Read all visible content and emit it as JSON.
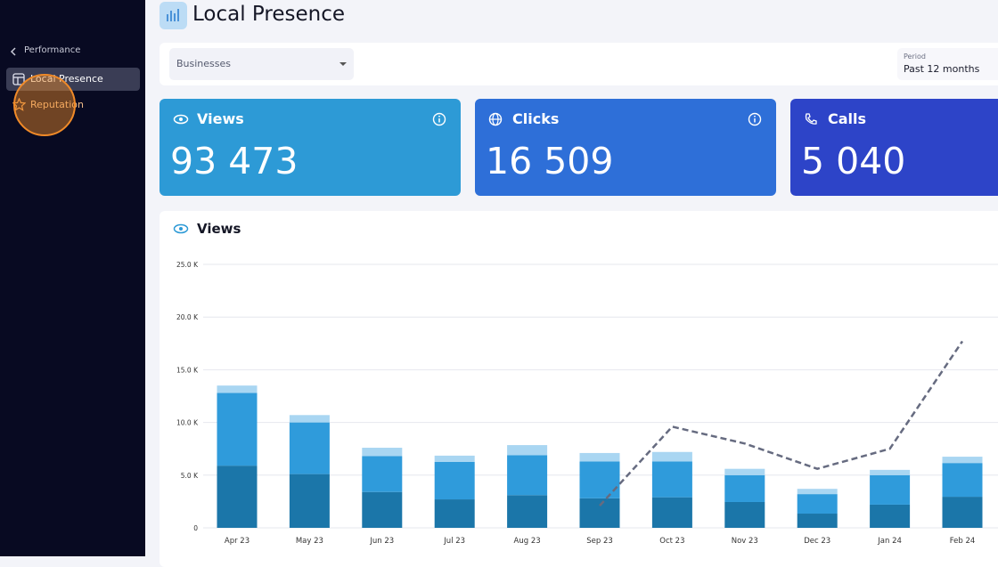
{
  "sidebar": {
    "back": "Performance",
    "items": [
      "Local Presence",
      "Reputation"
    ]
  },
  "header": {
    "title": "Local Presence"
  },
  "filters": {
    "businesses": "Businesses",
    "period_label": "Period",
    "period_value": "Past 12 months"
  },
  "kpis": [
    {
      "label": "Views",
      "value": "93 473"
    },
    {
      "label": "Clicks",
      "value": "16 509"
    },
    {
      "label": "Calls",
      "value": "5 040"
    }
  ],
  "chart_card": {
    "title": "Views"
  },
  "chart_data": {
    "type": "bar",
    "stacked": true,
    "categories": [
      "Apr 23",
      "May 23",
      "Jun 23",
      "Jul 23",
      "Aug 23",
      "Sep 23",
      "Oct 23",
      "Nov 23",
      "Dec 23",
      "Jan 24",
      "Feb 24"
    ],
    "series": [
      {
        "color": "#1b76a9",
        "values": [
          5900,
          5100,
          3400,
          2700,
          3100,
          2800,
          2900,
          2450,
          1350,
          2200,
          2950
        ]
      },
      {
        "color": "#2f9bdb",
        "values": [
          6900,
          4900,
          3400,
          3550,
          3800,
          3500,
          3400,
          2550,
          1850,
          2800,
          3200
        ]
      },
      {
        "color": "#a9d6f2",
        "values": [
          700,
          700,
          800,
          600,
          950,
          800,
          900,
          600,
          500,
          500,
          600
        ]
      },
      {
        "type": "line",
        "color": "#666b80",
        "dashed": true,
        "values": [
          null,
          null,
          null,
          null,
          null,
          2100,
          9600,
          8000,
          5600,
          7500,
          17700
        ]
      }
    ],
    "ylim": [
      0,
      25000
    ],
    "yticks": [
      0,
      {
        "value": 5000,
        "label": "5.0 K"
      },
      {
        "value": 10000,
        "label": "10.0 K"
      },
      {
        "value": 15000,
        "label": "15.0 K"
      },
      {
        "value": 20000,
        "label": "20.0 K"
      },
      {
        "value": 25000,
        "label": "25.0 K"
      }
    ],
    "grid": true
  }
}
